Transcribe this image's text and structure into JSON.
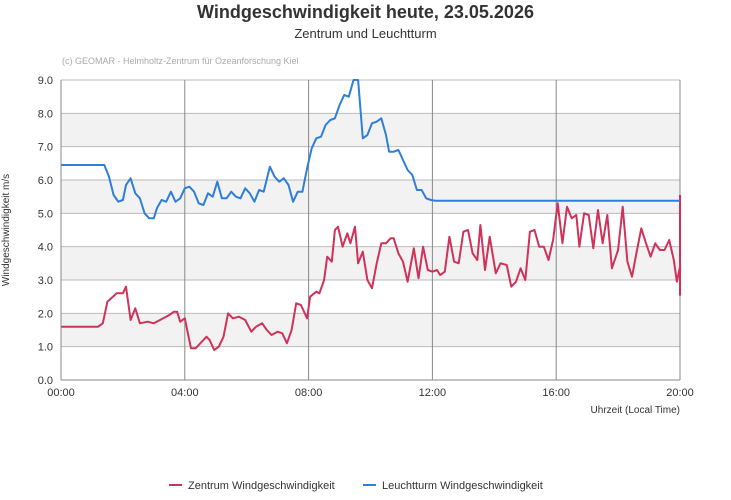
{
  "chart_data": {
    "type": "line",
    "title": "Windgeschwindigkeit heute, 23.05.2026",
    "subtitle": "Zentrum und Leuchtturm",
    "credit": "(c) GEOMAR - Helmholtz-Zentrum für Ozeanforschung Kiel",
    "xlabel": "Uhrzeit (Local Time)",
    "ylabel": "Windgeschwindigkeit m/s",
    "xlim": [
      0,
      20
    ],
    "ylim": [
      0,
      9
    ],
    "x_ticks": [
      {
        "v": 0,
        "label": "00:00"
      },
      {
        "v": 4,
        "label": "04:00"
      },
      {
        "v": 8,
        "label": "08:00"
      },
      {
        "v": 12,
        "label": "12:00"
      },
      {
        "v": 16,
        "label": "16:00"
      },
      {
        "v": 20,
        "label": "20:00"
      }
    ],
    "y_ticks": [
      {
        "v": 0,
        "label": "0.0"
      },
      {
        "v": 1,
        "label": "1.0"
      },
      {
        "v": 2,
        "label": "2.0"
      },
      {
        "v": 3,
        "label": "3.0"
      },
      {
        "v": 4,
        "label": "4.0"
      },
      {
        "v": 5,
        "label": "5.0"
      },
      {
        "v": 6,
        "label": "6.0"
      },
      {
        "v": 7,
        "label": "7.0"
      },
      {
        "v": 8,
        "label": "8.0"
      },
      {
        "v": 9,
        "label": "9.0"
      }
    ],
    "alternate_bands": true,
    "grid": true,
    "legend_position": "bottom-center",
    "colors": {
      "band": "#f2f2f2",
      "grid": "#bbbbbb",
      "axis": "#888888",
      "text": "#333333",
      "credit": "#aaaaaa"
    },
    "series": [
      {
        "name": "Zentrum Windgeschwindigkeit",
        "color": "#d0325a",
        "points": [
          [
            0,
            1.6
          ],
          [
            1.2,
            1.6
          ],
          [
            1.35,
            1.7
          ],
          [
            1.5,
            2.35
          ],
          [
            1.8,
            2.6
          ],
          [
            2.0,
            2.6
          ],
          [
            2.1,
            2.8
          ],
          [
            2.25,
            1.8
          ],
          [
            2.4,
            2.15
          ],
          [
            2.55,
            1.7
          ],
          [
            2.8,
            1.75
          ],
          [
            3.0,
            1.7
          ],
          [
            3.2,
            1.8
          ],
          [
            3.5,
            1.95
          ],
          [
            3.65,
            2.05
          ],
          [
            3.75,
            2.05
          ],
          [
            3.85,
            1.75
          ],
          [
            4.0,
            1.85
          ],
          [
            4.2,
            0.95
          ],
          [
            4.35,
            0.95
          ],
          [
            4.5,
            1.1
          ],
          [
            4.7,
            1.3
          ],
          [
            4.8,
            1.2
          ],
          [
            4.95,
            0.9
          ],
          [
            5.1,
            1.0
          ],
          [
            5.25,
            1.3
          ],
          [
            5.4,
            2.0
          ],
          [
            5.55,
            1.85
          ],
          [
            5.75,
            1.9
          ],
          [
            5.95,
            1.8
          ],
          [
            6.15,
            1.45
          ],
          [
            6.3,
            1.6
          ],
          [
            6.5,
            1.7
          ],
          [
            6.65,
            1.5
          ],
          [
            6.8,
            1.35
          ],
          [
            7.0,
            1.45
          ],
          [
            7.15,
            1.4
          ],
          [
            7.3,
            1.1
          ],
          [
            7.45,
            1.5
          ],
          [
            7.6,
            2.3
          ],
          [
            7.75,
            2.25
          ],
          [
            7.95,
            1.85
          ],
          [
            8.05,
            2.5
          ],
          [
            8.25,
            2.65
          ],
          [
            8.35,
            2.6
          ],
          [
            8.5,
            3.0
          ],
          [
            8.6,
            3.7
          ],
          [
            8.75,
            3.55
          ],
          [
            8.85,
            4.5
          ],
          [
            8.95,
            4.6
          ],
          [
            9.1,
            4.0
          ],
          [
            9.25,
            4.4
          ],
          [
            9.35,
            4.1
          ],
          [
            9.5,
            4.6
          ],
          [
            9.6,
            3.5
          ],
          [
            9.75,
            3.85
          ],
          [
            9.9,
            3.0
          ],
          [
            10.05,
            2.75
          ],
          [
            10.2,
            3.5
          ],
          [
            10.35,
            4.1
          ],
          [
            10.5,
            4.1
          ],
          [
            10.65,
            4.25
          ],
          [
            10.75,
            4.25
          ],
          [
            10.9,
            3.8
          ],
          [
            11.05,
            3.55
          ],
          [
            11.2,
            2.95
          ],
          [
            11.4,
            3.95
          ],
          [
            11.55,
            3.05
          ],
          [
            11.7,
            4.0
          ],
          [
            11.85,
            3.3
          ],
          [
            12.0,
            3.25
          ],
          [
            12.15,
            3.3
          ],
          [
            12.25,
            3.15
          ],
          [
            12.4,
            3.25
          ],
          [
            12.55,
            4.3
          ],
          [
            12.7,
            3.55
          ],
          [
            12.85,
            3.5
          ],
          [
            13.0,
            4.45
          ],
          [
            13.15,
            4.5
          ],
          [
            13.3,
            3.8
          ],
          [
            13.45,
            3.6
          ],
          [
            13.55,
            4.65
          ],
          [
            13.7,
            3.3
          ],
          [
            13.85,
            4.3
          ],
          [
            14.05,
            3.2
          ],
          [
            14.2,
            3.5
          ],
          [
            14.4,
            3.45
          ],
          [
            14.55,
            2.8
          ],
          [
            14.7,
            2.95
          ],
          [
            14.85,
            3.35
          ],
          [
            15.0,
            3.0
          ],
          [
            15.15,
            4.45
          ],
          [
            15.3,
            4.5
          ],
          [
            15.45,
            4.0
          ],
          [
            15.6,
            4.0
          ],
          [
            15.75,
            3.6
          ],
          [
            15.9,
            4.2
          ],
          [
            16.05,
            5.3
          ],
          [
            16.2,
            4.1
          ],
          [
            16.35,
            5.2
          ],
          [
            16.5,
            4.85
          ],
          [
            16.65,
            4.95
          ],
          [
            16.75,
            4.0
          ],
          [
            16.9,
            5.0
          ],
          [
            17.05,
            4.95
          ],
          [
            17.2,
            3.95
          ],
          [
            17.35,
            5.1
          ],
          [
            17.5,
            4.1
          ],
          [
            17.65,
            4.95
          ],
          [
            17.8,
            3.35
          ],
          [
            18.0,
            3.9
          ],
          [
            18.15,
            5.2
          ],
          [
            18.3,
            3.55
          ],
          [
            18.45,
            3.1
          ],
          [
            18.6,
            3.85
          ],
          [
            18.75,
            4.55
          ],
          [
            18.9,
            4.1
          ],
          [
            19.05,
            3.7
          ],
          [
            19.2,
            4.1
          ],
          [
            19.35,
            3.9
          ],
          [
            19.5,
            3.9
          ],
          [
            19.65,
            4.2
          ],
          [
            19.8,
            3.6
          ],
          [
            19.9,
            2.95
          ],
          [
            20.05,
            3.4
          ],
          [
            20.2,
            2.55
          ],
          [
            20.35,
            2.85
          ],
          [
            20.5,
            4.95
          ],
          [
            20.65,
            4.5
          ],
          [
            20.7,
            5.55
          ]
        ]
      },
      {
        "name": "Leuchtturm Windgeschwindigkeit",
        "color": "#2f7ed8",
        "points": [
          [
            0,
            6.45
          ],
          [
            1.25,
            6.45
          ],
          [
            1.4,
            6.45
          ],
          [
            1.55,
            6.1
          ],
          [
            1.7,
            5.55
          ],
          [
            1.85,
            5.35
          ],
          [
            2.0,
            5.4
          ],
          [
            2.1,
            5.85
          ],
          [
            2.25,
            6.05
          ],
          [
            2.4,
            5.6
          ],
          [
            2.55,
            5.45
          ],
          [
            2.7,
            5.0
          ],
          [
            2.85,
            4.85
          ],
          [
            3.0,
            4.85
          ],
          [
            3.1,
            5.15
          ],
          [
            3.25,
            5.4
          ],
          [
            3.4,
            5.35
          ],
          [
            3.55,
            5.65
          ],
          [
            3.7,
            5.35
          ],
          [
            3.85,
            5.45
          ],
          [
            4.0,
            5.75
          ],
          [
            4.15,
            5.8
          ],
          [
            4.3,
            5.65
          ],
          [
            4.45,
            5.3
          ],
          [
            4.6,
            5.25
          ],
          [
            4.75,
            5.6
          ],
          [
            4.9,
            5.5
          ],
          [
            5.05,
            5.95
          ],
          [
            5.2,
            5.45
          ],
          [
            5.35,
            5.45
          ],
          [
            5.5,
            5.65
          ],
          [
            5.65,
            5.5
          ],
          [
            5.8,
            5.45
          ],
          [
            5.95,
            5.75
          ],
          [
            6.1,
            5.6
          ],
          [
            6.25,
            5.35
          ],
          [
            6.4,
            5.7
          ],
          [
            6.55,
            5.65
          ],
          [
            6.75,
            6.4
          ],
          [
            6.9,
            6.1
          ],
          [
            7.05,
            5.95
          ],
          [
            7.2,
            6.05
          ],
          [
            7.35,
            5.85
          ],
          [
            7.5,
            5.35
          ],
          [
            7.65,
            5.65
          ],
          [
            7.8,
            5.65
          ],
          [
            7.95,
            6.35
          ],
          [
            8.1,
            6.95
          ],
          [
            8.25,
            7.25
          ],
          [
            8.4,
            7.3
          ],
          [
            8.55,
            7.65
          ],
          [
            8.7,
            7.8
          ],
          [
            8.85,
            7.85
          ],
          [
            9.0,
            8.25
          ],
          [
            9.15,
            8.55
          ],
          [
            9.3,
            8.5
          ],
          [
            9.45,
            9.0
          ],
          [
            9.6,
            9.0
          ],
          [
            9.75,
            7.25
          ],
          [
            9.9,
            7.35
          ],
          [
            10.05,
            7.7
          ],
          [
            10.2,
            7.75
          ],
          [
            10.35,
            7.85
          ],
          [
            10.5,
            7.35
          ],
          [
            10.6,
            6.85
          ],
          [
            10.75,
            6.85
          ],
          [
            10.9,
            6.9
          ],
          [
            11.05,
            6.6
          ],
          [
            11.2,
            6.3
          ],
          [
            11.35,
            6.15
          ],
          [
            11.5,
            5.7
          ],
          [
            11.65,
            5.7
          ],
          [
            11.8,
            5.45
          ],
          [
            11.95,
            5.4
          ],
          [
            12.1,
            5.38
          ],
          [
            20.7,
            5.38
          ]
        ]
      }
    ]
  }
}
